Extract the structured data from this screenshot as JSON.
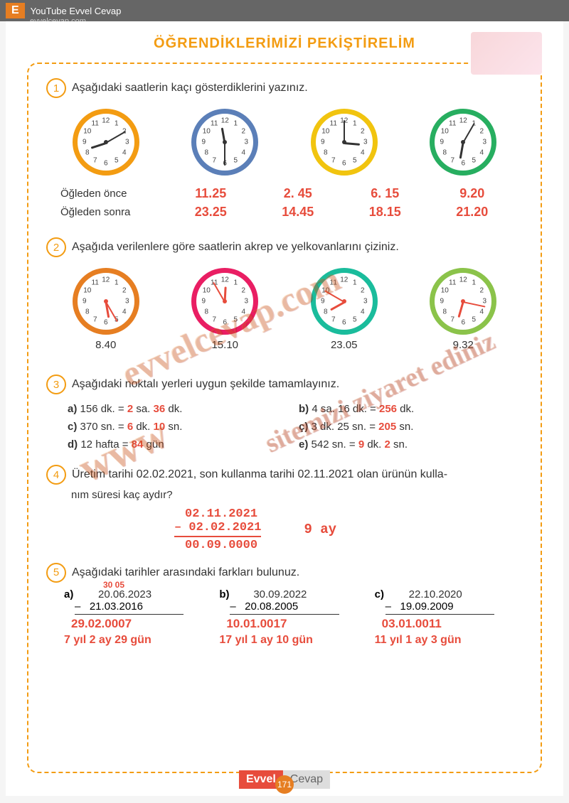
{
  "header": {
    "badge": "E",
    "youtube": "YouTube Evvel Cevap",
    "url": "evvelcevap.com"
  },
  "title": "ÖĞRENDİKLERİMİZİ PEKİŞTİRELİM",
  "q1": {
    "num": "1",
    "text": "Aşağıdaki saatlerin kaçı gösterdiklerini yazınız.",
    "label_before": "Öğleden önce",
    "label_after": "Öğleden sonra",
    "clocks": [
      {
        "border": "#f39c12",
        "hour_angle": 252,
        "min_angle": 60,
        "before": "11.25",
        "after": "23.25"
      },
      {
        "border": "#5b7fb8",
        "hour_angle": 350,
        "min_angle": 180,
        "before": "2. 45",
        "after": "14.45"
      },
      {
        "border": "#f1c40f",
        "hour_angle": 95,
        "min_angle": 0,
        "before": "6. 15",
        "after": "18.15"
      },
      {
        "border": "#27ae60",
        "hour_angle": 190,
        "min_angle": 30,
        "before": "9.20",
        "after": "21.20"
      }
    ]
  },
  "q2": {
    "num": "2",
    "text": "Aşağıda verilenlere göre saatlerin akrep ve yelkovanlarını çiziniz.",
    "clocks": [
      {
        "border": "#e67e22",
        "hour_angle": 170,
        "min_angle": 150,
        "hand_color": "#e74c3c",
        "label": "8.40"
      },
      {
        "border": "#e91e63",
        "hour_angle": 3,
        "min_angle": -30,
        "hand_color": "#e74c3c",
        "label": "15.10"
      },
      {
        "border": "#1abc9c",
        "hour_angle": 241,
        "min_angle": -60,
        "hand_color": "#e74c3c",
        "label": "23.05"
      },
      {
        "border": "#8bc34a",
        "hour_angle": 196,
        "min_angle": 102,
        "hand_color": "#e74c3c",
        "label": "9.32"
      }
    ]
  },
  "q3": {
    "num": "3",
    "text": "Aşağıdaki noktalı yerleri uygun şekilde tamamlayınız.",
    "items": [
      {
        "label": "a)",
        "pre": "156 dk. =",
        "a1": "2",
        "mid1": "sa.",
        "a2": "36",
        "mid2": "dk."
      },
      {
        "label": "b)",
        "pre": "4 sa. 16 dk. =",
        "a1": "256",
        "mid1": "dk.",
        "a2": "",
        "mid2": ""
      },
      {
        "label": "c)",
        "pre": "370 sn. =",
        "a1": "6",
        "mid1": "dk.",
        "a2": "10",
        "mid2": "sn."
      },
      {
        "label": "ç)",
        "pre": "3 dk. 25 sn. =",
        "a1": "205",
        "mid1": "sn.",
        "a2": "",
        "mid2": ""
      },
      {
        "label": "d)",
        "pre": "12 hafta =",
        "a1": "84",
        "mid1": "gün",
        "a2": "",
        "mid2": ""
      },
      {
        "label": "e)",
        "pre": "542 sn. =",
        "a1": "9",
        "mid1": "dk.",
        "a2": "2",
        "mid2": "sn."
      }
    ]
  },
  "q4": {
    "num": "4",
    "text": "Üretim tarihi 02.02.2021, son kullanma tarihi 02.11.2021 olan ürünün kullanım süresi kaç aydır?",
    "calc": {
      "l1": "02.11.2021",
      "l2": "02.02.2021",
      "l3": "00.09.0000",
      "ans": "9 ay"
    }
  },
  "q5": {
    "num": "5",
    "text": "Aşağıdaki tarihler arasındaki farkları bulunuz.",
    "cols": [
      {
        "lbl": "a)",
        "carry": "30 05",
        "d1": "20.06.2023",
        "d2": "21.03.2016",
        "res": "29.02.0007",
        "words": "7 yıl 2 ay 29 gün"
      },
      {
        "lbl": "b)",
        "carry": "",
        "d1": "30.09.2022",
        "d2": "20.08.2005",
        "res": "10.01.0017",
        "words": "17 yıl 1 ay 10 gün"
      },
      {
        "lbl": "c)",
        "carry": "",
        "d1": "22.10.2020",
        "d2": "19.09.2009",
        "res": "03.01.0011",
        "words": "11 yıl 1 ay 3 gün"
      }
    ]
  },
  "footer": {
    "e": "Evvel",
    "c": "Cevap",
    "page": "171"
  },
  "watermarks": {
    "w1": "evvelcevap.com",
    "w2": "www",
    "w3": "sitemizi ziyaret ediniz"
  }
}
